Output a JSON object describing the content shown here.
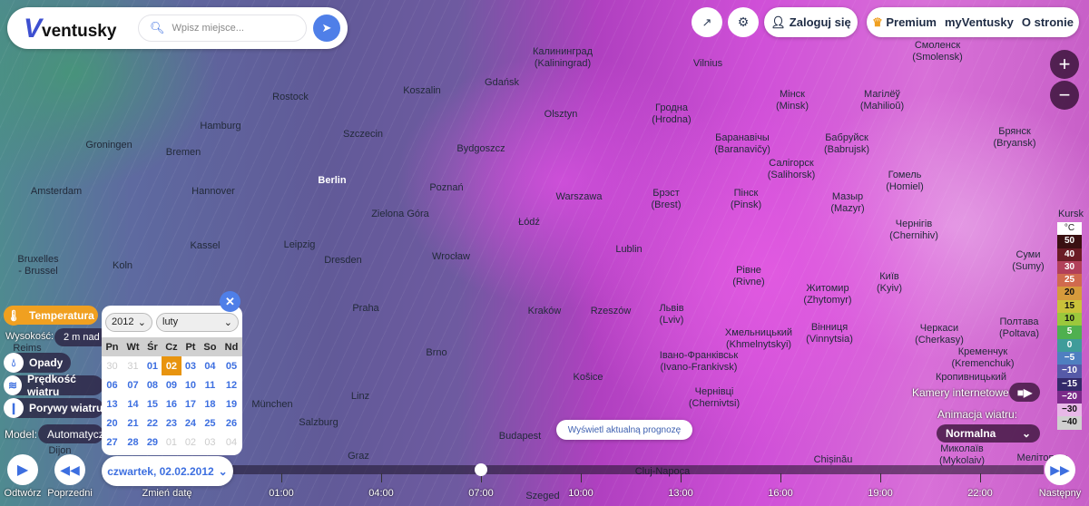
{
  "header": {
    "logo": "ventusky",
    "search_placeholder": "Wpisz miejsce...",
    "login": "Zaloguj się",
    "premium": "Premium",
    "my": "myVentusky",
    "about": "O stronie"
  },
  "layers": {
    "temperature": "Temperatura",
    "height_label": "Wysokość:",
    "height_value": "2 m nad",
    "precip": "Opady",
    "wind_speed": "Prędkość wiatru",
    "gusts": "Porywy wiatru",
    "model_label": "Model:",
    "model_value": "Automatyczn"
  },
  "calendar": {
    "year": "2012",
    "month": "luty",
    "weekdays": [
      "Pn",
      "Wt",
      "Śr",
      "Cz",
      "Pt",
      "So",
      "Nd"
    ],
    "weeks": [
      [
        "30",
        "31",
        "01",
        "02",
        "03",
        "04",
        "05"
      ],
      [
        "06",
        "07",
        "08",
        "09",
        "10",
        "11",
        "12"
      ],
      [
        "13",
        "14",
        "15",
        "16",
        "17",
        "18",
        "19"
      ],
      [
        "20",
        "21",
        "22",
        "23",
        "24",
        "25",
        "26"
      ],
      [
        "27",
        "28",
        "29",
        "01",
        "02",
        "03",
        "04"
      ]
    ],
    "selected": "02"
  },
  "date_button": "czwartek, 02.02.2012",
  "controls": {
    "play": "Odtwórz",
    "prev": "Poprzedni",
    "change_date": "Zmień datę",
    "next": "Następny"
  },
  "forecast_button": "Wyświetl aktualną prognozę",
  "webcams": "Kamery internetowe",
  "wind_anim_label": "Animacja wiatru:",
  "wind_anim_value": "Normalna",
  "timeline": {
    "hours": [
      "01:00",
      "04:00",
      "07:00",
      "10:00",
      "13:00",
      "16:00",
      "19:00",
      "22:00"
    ],
    "current": "07:00"
  },
  "legend": {
    "unit": "°C",
    "values": [
      "50",
      "40",
      "30",
      "25",
      "20",
      "15",
      "10",
      "5",
      "0",
      "−5",
      "−10",
      "−15",
      "−20",
      "−30",
      "−40"
    ],
    "colors": [
      "#3a1012",
      "#6a1c25",
      "#b2405a",
      "#d06a4e",
      "#d69a3c",
      "#c9c23a",
      "#9bc83c",
      "#4fb04f",
      "#3f9c9a",
      "#4f7fc0",
      "#565aa8",
      "#332a6a",
      "#7b2a8a",
      "#e8b8e8",
      "#d0d0d0"
    ]
  },
  "cities": [
    "Калининград\n(Kaliningrad)",
    "Vilnius",
    "Смоленск\n(Smolensk)",
    "Koszalin",
    "Gdańsk",
    "Rostock",
    "Olsztyn",
    "Гродна\n(Hrodna)",
    "Мінск\n(Minsk)",
    "Магілёў\n(Mahilioŭ)",
    "Hamburg",
    "Szczecin",
    "Брянск\n(Bryansk)",
    "Bydgoszcz",
    "Баранавічы\n(Baranavičy)",
    "Бабруйск\n(Babrujsk)",
    "Салігорск\n(Salihorsk)",
    "Groningen",
    "Bremen",
    "Гомель\n(Homiel)",
    "Berlin",
    "Poznań",
    "Amsterdam",
    "Hannover",
    "Брэст\n(Brest)",
    "Пінск\n(Pinsk)",
    "Мазыр\n(Mazyr)",
    "Warszawa",
    "Zielona Góra",
    "Łódź",
    "Чернігів\n(Chernihiv)",
    "Kassel",
    "Leipzig",
    "Lublin",
    "Wrocław",
    "Dresden",
    "Bruxelles\n- Brussel",
    "Koln",
    "Суми\n(Sumy)",
    "Рівне\n(Rivne)",
    "Житомир\n(Zhytomyr)",
    "Київ\n(Kyiv)",
    "Kraków",
    "Rzeszów",
    "Praha",
    "Львів\n(Lviv)",
    "Полтава\n(Poltava)",
    "Хмельницький\n(Khmelnytskyi)",
    "Вінниця\n(Vinnytsia)",
    "Черкаси\n(Cherkasy)",
    "Кременчук\n(Kremenchuk)",
    "Івано-Франківськ\n(Ivano-Frankivsk)",
    "Brno",
    "Košice",
    "Кропивницький",
    "Чернівці\n(Chernivtsi)",
    "München",
    "Linz",
    "Salzburg",
    "Budapest",
    "Graz",
    "Chișinău",
    "Cluj-Napoca",
    "Миколаїв\n(Mykolaiv)",
    "Мелітополь",
    "Szeged",
    "Reims",
    "Dijon",
    "Kursk"
  ]
}
